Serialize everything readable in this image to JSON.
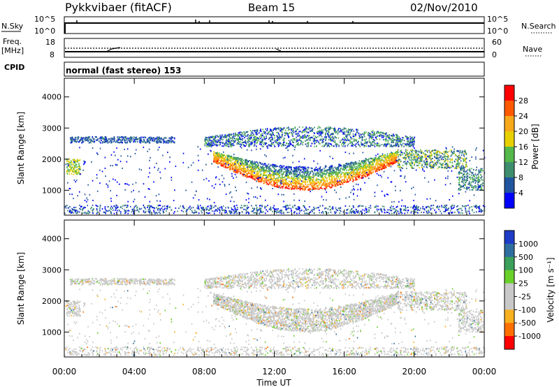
{
  "header": {
    "title": "Pykkvibaer (fitACF)",
    "beam": "Beam 15",
    "date": "02/Nov/2010"
  },
  "strips": {
    "nsky_label": "N.Sky",
    "nsky_ticks": [
      "10^5",
      "10^0"
    ],
    "nsearch_label": "N.Search",
    "freq_label": "Freq.",
    "freq_unit": "[MHz]",
    "freq_ticks": [
      "18",
      "8"
    ],
    "nave_label": "Nave",
    "nave_ticks": [
      "60",
      "0"
    ],
    "cpid_label": "CPID",
    "cpid_text": "normal (fast stereo) 153"
  },
  "colorbars": {
    "power": {
      "label": "Power [dB]",
      "ticks": [
        "28",
        "24",
        "20",
        "16",
        "12",
        "8",
        "4"
      ],
      "colors": [
        "#ff0000",
        "#ff5a00",
        "#f7a81b",
        "#e8d000",
        "#55b84a",
        "#3e8e6e",
        "#2255a0",
        "#0000ff"
      ]
    },
    "velocity": {
      "label": "Velocity [m s⁻¹]",
      "ticks": [
        "1000",
        "500",
        "100",
        "25",
        "-25",
        "-100",
        "-500",
        "-1000"
      ],
      "colors": [
        "#1e3cc8",
        "#2f6e9e",
        "#3aa05a",
        "#6ad02a",
        "#c8c8c8",
        "#c8c8c8",
        "#f7b020",
        "#ff7000",
        "#ff0000"
      ]
    }
  },
  "chart_data": [
    {
      "type": "heatmap",
      "panel": "power",
      "ylabel": "Slant Range [km]",
      "xlabel": "",
      "xlim": [
        0,
        24
      ],
      "ylim": [
        200,
        4600
      ],
      "xticks": [
        "00:00",
        "04:00",
        "08:00",
        "12:00",
        "16:00",
        "20:00",
        "00:00"
      ],
      "yticks": [
        1000,
        2000,
        3000,
        4000
      ],
      "color_scale": "Power [dB]"
    },
    {
      "type": "heatmap",
      "panel": "velocity",
      "ylabel": "Slant Range [km]",
      "xlabel": "Time UT",
      "xlim": [
        0,
        24
      ],
      "ylim": [
        200,
        4600
      ],
      "xticks": [
        "00:00",
        "04:00",
        "08:00",
        "12:00",
        "16:00",
        "20:00",
        "00:00"
      ],
      "yticks": [
        1000,
        2000,
        3000,
        4000
      ],
      "color_scale": "Velocity [m s⁻¹]"
    }
  ]
}
